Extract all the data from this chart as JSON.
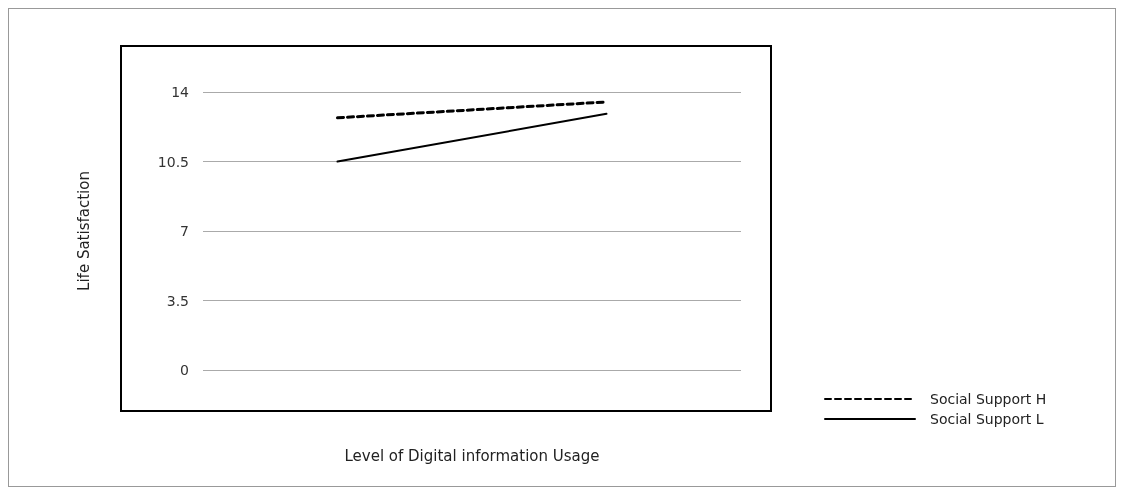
{
  "chart_data": {
    "type": "line",
    "xlabel": "Level of Digital information Usage",
    "ylabel": "Life Satisfaction",
    "categories": [
      null,
      null
    ],
    "series": [
      {
        "name": "Social Support H",
        "color": "#000000",
        "line_style": "dashed",
        "values": [
          12.7,
          13.5
        ]
      },
      {
        "name": "Social Support L",
        "color": "#000000",
        "line_style": "solid",
        "values": [
          10.5,
          12.9
        ]
      }
    ],
    "ylim": [
      0,
      14
    ],
    "yticks": [
      0,
      3.5,
      7,
      10.5,
      14
    ],
    "grid": "y",
    "legend": "right",
    "marker": "none"
  }
}
